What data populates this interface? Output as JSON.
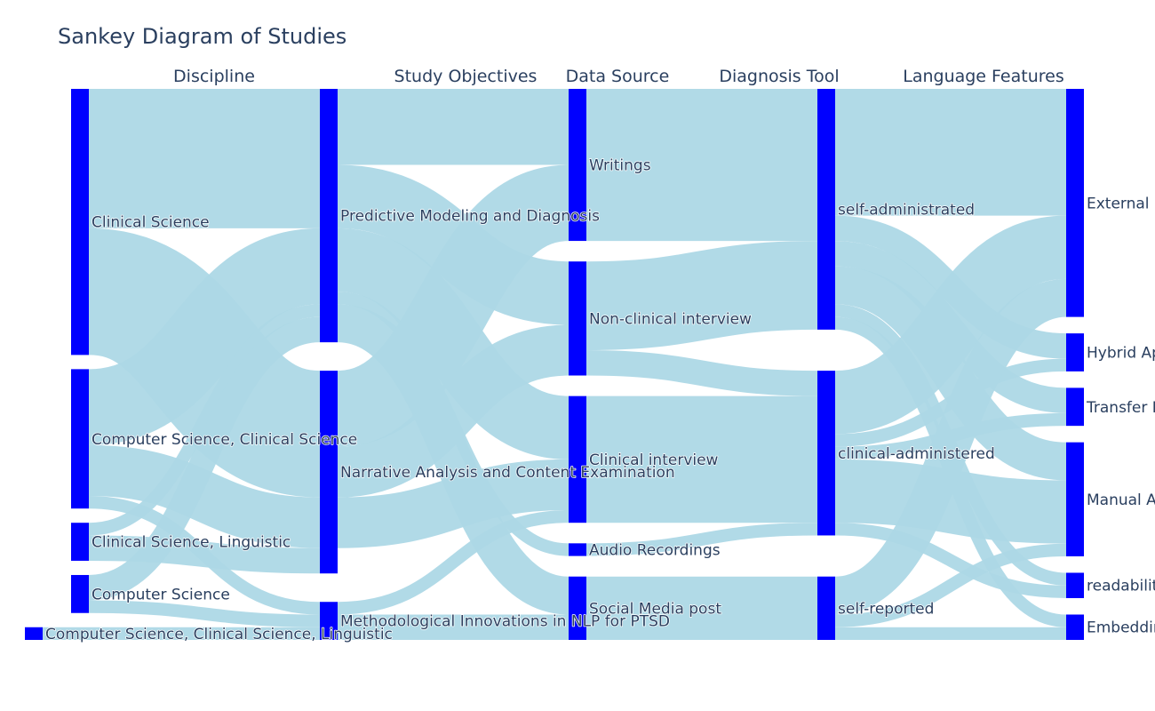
{
  "title": "Sankey Diagram of Studies",
  "columns": [
    "Discipline",
    "Study Objectives",
    "Data Source",
    "Diagnosis Tool",
    "Language Features"
  ],
  "colors": {
    "node": "#0000ff",
    "link": "#add8e6",
    "text": "#2a3f5f"
  },
  "chart_data": {
    "type": "sankey",
    "nodes": [
      {
        "id": "cs",
        "label": "Clinical Science",
        "column": 0
      },
      {
        "id": "cscl",
        "label": "Computer Science, Clinical Science",
        "column": 0
      },
      {
        "id": "csl",
        "label": "Clinical Science, Linguistic",
        "column": 0
      },
      {
        "id": "comp",
        "label": "Computer Science",
        "column": 0
      },
      {
        "id": "csli",
        "label": "Computer Science, Clinical Science, Linguistic",
        "column": 0
      },
      {
        "id": "pmd",
        "label": "Predictive Modeling and Diagnosis",
        "column": 1
      },
      {
        "id": "nace",
        "label": "Narrative Analysis and Content Examination",
        "column": 1
      },
      {
        "id": "mi",
        "label": "Methodological Innovations in NLP for PTSD",
        "column": 1
      },
      {
        "id": "wr",
        "label": "Writings",
        "column": 2
      },
      {
        "id": "nci",
        "label": "Non-clinical interview",
        "column": 2
      },
      {
        "id": "ci",
        "label": "Clinical interview",
        "column": 2
      },
      {
        "id": "ar",
        "label": "Audio Recordings",
        "column": 2
      },
      {
        "id": "smp",
        "label": "Social Media post",
        "column": 2
      },
      {
        "id": "sa",
        "label": "self-administrated",
        "column": 3
      },
      {
        "id": "ca",
        "label": "clinical-administered",
        "column": 3
      },
      {
        "id": "sr",
        "label": "self-reported",
        "column": 3
      },
      {
        "id": "edwc",
        "label": "External Dictionary Word Count",
        "column": 4
      },
      {
        "id": "hyb",
        "label": "Hybrid Approaches",
        "column": 4
      },
      {
        "id": "tl",
        "label": "Transfer Learning",
        "column": 4
      },
      {
        "id": "man",
        "label": "Manual Annotation",
        "column": 4
      },
      {
        "id": "read",
        "label": "readability",
        "column": 4
      },
      {
        "id": "emb",
        "label": "Embeddings",
        "column": 4
      }
    ],
    "links": [
      {
        "source": "cs",
        "target": "pmd",
        "value": 11
      },
      {
        "source": "cs",
        "target": "nace",
        "value": 10
      },
      {
        "source": "cscl",
        "target": "pmd",
        "value": 6
      },
      {
        "source": "cscl",
        "target": "nace",
        "value": 4
      },
      {
        "source": "cscl",
        "target": "mi",
        "value": 1
      },
      {
        "source": "csl",
        "target": "pmd",
        "value": 1
      },
      {
        "source": "csl",
        "target": "nace",
        "value": 2
      },
      {
        "source": "comp",
        "target": "pmd",
        "value": 2
      },
      {
        "source": "comp",
        "target": "mi",
        "value": 1
      },
      {
        "source": "csli",
        "target": "mi",
        "value": 1
      },
      {
        "source": "pmd",
        "target": "wr",
        "value": 6
      },
      {
        "source": "pmd",
        "target": "nci",
        "value": 5
      },
      {
        "source": "pmd",
        "target": "ci",
        "value": 5
      },
      {
        "source": "pmd",
        "target": "ar",
        "value": 1
      },
      {
        "source": "pmd",
        "target": "smp",
        "value": 3
      },
      {
        "source": "nace",
        "target": "wr",
        "value": 6
      },
      {
        "source": "nace",
        "target": "nci",
        "value": 4
      },
      {
        "source": "nace",
        "target": "ci",
        "value": 4
      },
      {
        "source": "mi",
        "target": "ci",
        "value": 1
      },
      {
        "source": "mi",
        "target": "smp",
        "value": 2
      },
      {
        "source": "wr",
        "target": "sa",
        "value": 12
      },
      {
        "source": "nci",
        "target": "sa",
        "value": 7
      },
      {
        "source": "nci",
        "target": "ca",
        "value": 2
      },
      {
        "source": "ci",
        "target": "ca",
        "value": 10
      },
      {
        "source": "ar",
        "target": "ca",
        "value": 1
      },
      {
        "source": "smp",
        "target": "sr",
        "value": 5
      },
      {
        "source": "sa",
        "target": "edwc",
        "value": 10
      },
      {
        "source": "sa",
        "target": "hyb",
        "value": 2
      },
      {
        "source": "sa",
        "target": "tl",
        "value": 2
      },
      {
        "source": "sa",
        "target": "man",
        "value": 3
      },
      {
        "source": "sa",
        "target": "read",
        "value": 1
      },
      {
        "source": "sa",
        "target": "emb",
        "value": 1
      },
      {
        "source": "ca",
        "target": "edwc",
        "value": 5
      },
      {
        "source": "ca",
        "target": "hyb",
        "value": 1
      },
      {
        "source": "ca",
        "target": "tl",
        "value": 1
      },
      {
        "source": "ca",
        "target": "man",
        "value": 5
      },
      {
        "source": "ca",
        "target": "read",
        "value": 1
      },
      {
        "source": "sr",
        "target": "edwc",
        "value": 3
      },
      {
        "source": "sr",
        "target": "man",
        "value": 1
      },
      {
        "source": "sr",
        "target": "emb",
        "value": 1
      }
    ]
  }
}
